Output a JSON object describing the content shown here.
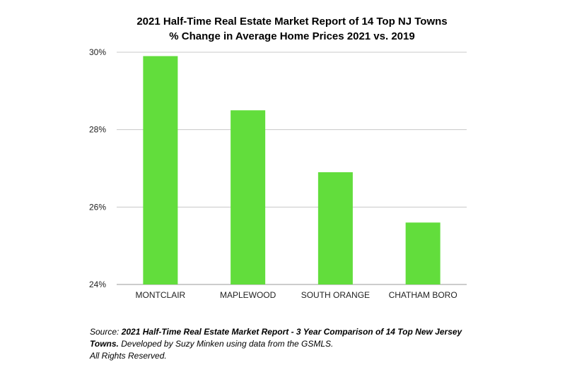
{
  "chart_data": {
    "type": "bar",
    "title": "2021 Half-Time Real Estate Market Report of 14 Top NJ Towns",
    "subtitle": "% Change in Average Home Prices 2021 vs. 2019",
    "categories": [
      "MONTCLAIR",
      "MAPLEWOOD",
      "SOUTH ORANGE",
      "CHATHAM BORO"
    ],
    "values": [
      29.9,
      28.5,
      26.9,
      25.6
    ],
    "ylim": [
      24,
      30
    ],
    "yticks": [
      24,
      26,
      28,
      30
    ],
    "ytick_labels": [
      "24%",
      "26%",
      "28%",
      "30%"
    ],
    "xlabel": "",
    "ylabel": "",
    "grid": true,
    "bar_color": "#62dd3c",
    "grid_color": "#c8c8c8"
  },
  "source": {
    "prefix": "Source: ",
    "bold": "2021 Half-Time Real Estate Market Report - 3 Year Comparison of 14 Top New Jersey Towns.",
    "rest": " Developed by Suzy Minken using data from the GSMLS.",
    "rights": "All Rights Reserved."
  }
}
